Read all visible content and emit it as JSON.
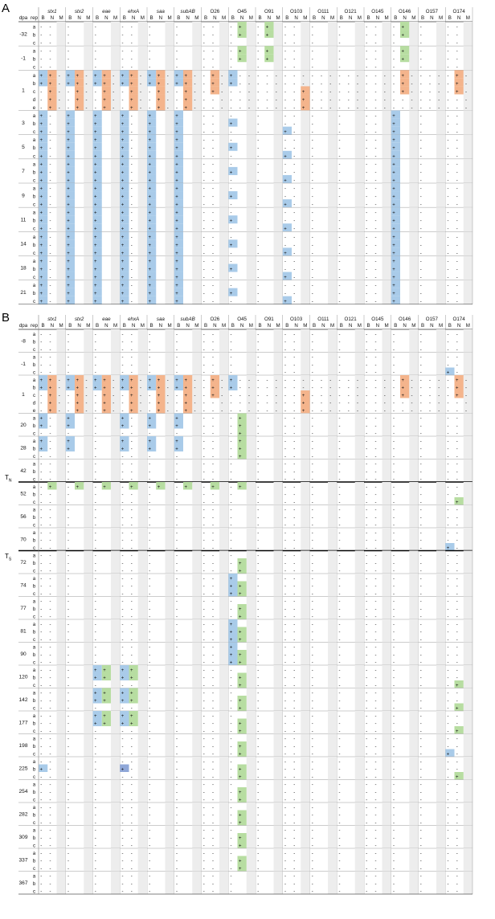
{
  "panels": [
    {
      "label": "A",
      "header": {
        "dpa": "dpa",
        "rep": "rep",
        "groups": [
          {
            "name": "stx1",
            "italic": true
          },
          {
            "name": "stx2",
            "italic": true
          },
          {
            "name": "eae",
            "italic": true
          },
          {
            "name": "ehxA",
            "italic": true
          },
          {
            "name": "saa",
            "italic": true
          },
          {
            "name": "subAB",
            "italic": true
          },
          {
            "name": "O26"
          },
          {
            "name": "O45"
          },
          {
            "name": "O91"
          },
          {
            "name": "O103"
          },
          {
            "name": "O111"
          },
          {
            "name": "O121"
          },
          {
            "name": "O145"
          },
          {
            "name": "O146"
          },
          {
            "name": "O157"
          },
          {
            "name": "O174"
          }
        ],
        "sub": [
          "B",
          "N",
          "M"
        ]
      },
      "days": [
        {
          "dpa": "-32",
          "reps": [
            "a",
            "b",
            "c"
          ]
        },
        {
          "dpa": "-1",
          "reps": [
            "a",
            "b",
            "c"
          ]
        },
        {
          "dpa": "1",
          "reps": [
            "a",
            "b",
            "c",
            "d",
            "e"
          ]
        },
        {
          "dpa": "3",
          "reps": [
            "a",
            "b",
            "c"
          ]
        },
        {
          "dpa": "5",
          "reps": [
            "a",
            "b",
            "c"
          ]
        },
        {
          "dpa": "7",
          "reps": [
            "a",
            "b",
            "c"
          ]
        },
        {
          "dpa": "9",
          "reps": [
            "a",
            "b",
            "c"
          ]
        },
        {
          "dpa": "11",
          "reps": [
            "a",
            "b",
            "c"
          ]
        },
        {
          "dpa": "14",
          "reps": [
            "a",
            "b",
            "c"
          ]
        },
        {
          "dpa": "18",
          "reps": [
            "a",
            "b",
            "c"
          ]
        },
        {
          "dpa": "21",
          "reps": [
            "a",
            "b",
            "c"
          ]
        }
      ]
    },
    {
      "label": "B",
      "header": {
        "dpa": "dpa",
        "rep": "rep",
        "groups": [
          {
            "name": "stx1",
            "italic": true
          },
          {
            "name": "stx2",
            "italic": true
          },
          {
            "name": "eae",
            "italic": true
          },
          {
            "name": "ehxA",
            "italic": true
          },
          {
            "name": "saa",
            "italic": true
          },
          {
            "name": "subAB",
            "italic": true
          },
          {
            "name": "O26"
          },
          {
            "name": "O45"
          },
          {
            "name": "O91"
          },
          {
            "name": "O103"
          },
          {
            "name": "O111"
          },
          {
            "name": "O121"
          },
          {
            "name": "O145"
          },
          {
            "name": "O146"
          },
          {
            "name": "O157"
          },
          {
            "name": "O174"
          }
        ],
        "sub": [
          "B",
          "N",
          "M"
        ]
      },
      "days": [
        {
          "dpa": "-8",
          "reps": [
            "a",
            "b",
            "c"
          ]
        },
        {
          "dpa": "-1",
          "reps": [
            "a",
            "b",
            "c"
          ]
        },
        {
          "dpa": "1",
          "reps": [
            "a",
            "b",
            "c",
            "d",
            "e"
          ]
        },
        {
          "dpa": "20",
          "reps": [
            "a",
            "b",
            "c"
          ]
        },
        {
          "dpa": "28",
          "reps": [
            "a",
            "b",
            "c"
          ]
        },
        {
          "dpa": "42",
          "reps": [
            "a",
            "b",
            "c"
          ],
          "lineAfter": "N"
        },
        {
          "dpa": "52",
          "reps": [
            "a",
            "b",
            "c"
          ]
        },
        {
          "dpa": "56",
          "reps": [
            "a",
            "b",
            "c"
          ]
        },
        {
          "dpa": "70",
          "reps": [
            "a",
            "b",
            "c"
          ],
          "lineAfter": "S"
        },
        {
          "dpa": "72",
          "reps": [
            "a",
            "b",
            "c"
          ]
        },
        {
          "dpa": "74",
          "reps": [
            "a",
            "b",
            "c"
          ]
        },
        {
          "dpa": "77",
          "reps": [
            "a",
            "b",
            "c"
          ]
        },
        {
          "dpa": "81",
          "reps": [
            "a",
            "b",
            "c"
          ]
        },
        {
          "dpa": "90",
          "reps": [
            "a",
            "b",
            "c"
          ]
        },
        {
          "dpa": "120",
          "reps": [
            "a",
            "b",
            "c"
          ]
        },
        {
          "dpa": "142",
          "reps": [
            "a",
            "b",
            "c"
          ]
        },
        {
          "dpa": "177",
          "reps": [
            "a",
            "b",
            "c"
          ]
        },
        {
          "dpa": "198",
          "reps": [
            "a",
            "b",
            "c"
          ]
        },
        {
          "dpa": "225",
          "reps": [
            "a",
            "b",
            "c"
          ]
        },
        {
          "dpa": "254",
          "reps": [
            "a",
            "b",
            "c"
          ]
        },
        {
          "dpa": "282",
          "reps": [
            "a",
            "b",
            "c"
          ]
        },
        {
          "dpa": "309",
          "reps": [
            "a",
            "b",
            "c"
          ]
        },
        {
          "dpa": "337",
          "reps": [
            "a",
            "b",
            "c"
          ]
        },
        {
          "dpa": "367",
          "reps": [
            "a",
            "b",
            "c"
          ]
        }
      ]
    }
  ],
  "threshold_labels": {
    "N": "T",
    "N_sub": "N",
    "S": "T",
    "S_sub": "S"
  },
  "cell_symbols": {
    "neg": "-",
    "pos": "+"
  },
  "colors": {
    "blue": "#a9cbe9",
    "green": "#b7dda1",
    "orange": "#f4b48c",
    "purple": "#8fa7d8",
    "stripe": "#ededed",
    "grid": "#9a9a9a"
  }
}
